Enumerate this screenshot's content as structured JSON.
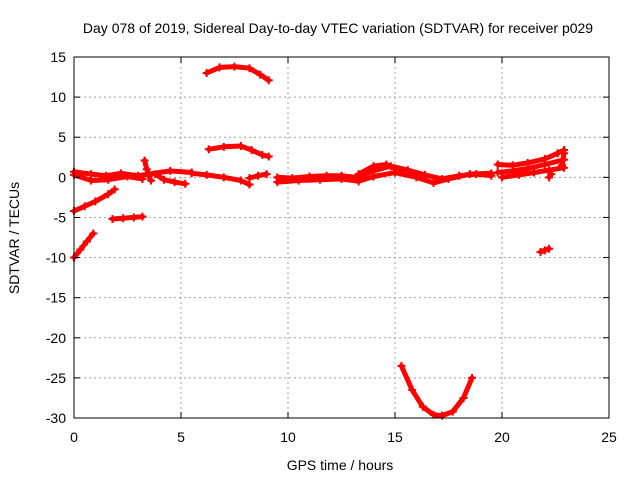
{
  "chart_data": {
    "type": "scatter",
    "title": "Day 078 of 2019, Sidereal Day-to-day VTEC variation (SDTVAR) for receiver p029",
    "xlabel": "GPS time / hours",
    "ylabel": "SDTVAR / TECUs",
    "xlim": [
      0,
      25
    ],
    "ylim": [
      -30,
      15
    ],
    "xticks": [
      0,
      5,
      10,
      15,
      20,
      25
    ],
    "yticks": [
      -30,
      -25,
      -20,
      -15,
      -10,
      -5,
      0,
      5,
      10,
      15
    ],
    "grid": true,
    "marker": "plus",
    "color": "#ff0000",
    "series": [
      {
        "values": [
          [
            0.0,
            0.7
          ],
          [
            0.8,
            0.4
          ],
          [
            1.5,
            0.2
          ],
          [
            2.2,
            0.5
          ],
          [
            3.0,
            0.2
          ],
          [
            3.5,
            0.4
          ],
          [
            4.5,
            0.8
          ],
          [
            5.5,
            0.6
          ]
        ]
      },
      {
        "values": [
          [
            0.0,
            0.3
          ],
          [
            0.8,
            -0.4
          ],
          [
            1.6,
            -0.3
          ],
          [
            2.5,
            0.1
          ],
          [
            3.2,
            -0.2
          ]
        ]
      },
      {
        "values": [
          [
            3.3,
            2.1
          ],
          [
            3.4,
            1.0
          ],
          [
            3.5,
            0.2
          ],
          [
            3.6,
            -0.4
          ]
        ]
      },
      {
        "values": [
          [
            3.8,
            0.4
          ],
          [
            4.2,
            -0.3
          ],
          [
            4.7,
            -0.6
          ],
          [
            5.2,
            -0.8
          ]
        ]
      },
      {
        "values": [
          [
            5.5,
            0.5
          ],
          [
            6.2,
            0.3
          ],
          [
            7.0,
            0.0
          ],
          [
            7.8,
            -0.4
          ],
          [
            8.2,
            -0.9
          ]
        ]
      },
      {
        "values": [
          [
            8.2,
            -0.1
          ],
          [
            8.6,
            0.2
          ],
          [
            9.0,
            0.4
          ]
        ]
      },
      {
        "values": [
          [
            0.0,
            -4.2
          ],
          [
            0.5,
            -3.6
          ],
          [
            1.0,
            -3.0
          ],
          [
            1.6,
            -2.1
          ],
          [
            1.9,
            -1.5
          ]
        ]
      },
      {
        "values": [
          [
            1.8,
            -5.2
          ],
          [
            2.3,
            -5.1
          ],
          [
            2.8,
            -5.0
          ],
          [
            3.2,
            -4.9
          ]
        ]
      },
      {
        "values": [
          [
            0.0,
            -10.0
          ],
          [
            0.3,
            -9.0
          ],
          [
            0.6,
            -8.0
          ],
          [
            0.9,
            -7.0
          ]
        ]
      },
      {
        "values": [
          [
            6.2,
            13.0
          ],
          [
            6.8,
            13.7
          ],
          [
            7.5,
            13.8
          ],
          [
            8.2,
            13.6
          ],
          [
            8.7,
            12.8
          ],
          [
            9.1,
            12.1
          ]
        ]
      },
      {
        "values": [
          [
            6.3,
            3.5
          ],
          [
            7.0,
            3.8
          ],
          [
            7.8,
            3.9
          ],
          [
            8.3,
            3.4
          ],
          [
            8.8,
            2.8
          ],
          [
            9.1,
            2.6
          ]
        ]
      },
      {
        "values": [
          [
            9.5,
            0.0
          ],
          [
            10.2,
            -0.1
          ],
          [
            11.0,
            0.1
          ],
          [
            11.8,
            0.2
          ],
          [
            12.5,
            0.2
          ],
          [
            13.2,
            0.0
          ],
          [
            14.0,
            0.8
          ],
          [
            14.8,
            1.4
          ],
          [
            15.6,
            0.9
          ],
          [
            16.4,
            0.3
          ],
          [
            17.2,
            -0.2
          ],
          [
            18.0,
            0.2
          ],
          [
            18.8,
            0.4
          ],
          [
            19.5,
            0.2
          ]
        ]
      },
      {
        "values": [
          [
            9.5,
            -0.6
          ],
          [
            10.5,
            -0.4
          ],
          [
            11.5,
            -0.3
          ],
          [
            12.5,
            -0.2
          ],
          [
            13.3,
            -0.5
          ],
          [
            14.0,
            0.1
          ],
          [
            15.0,
            0.6
          ],
          [
            16.0,
            0.0
          ],
          [
            16.8,
            -0.7
          ],
          [
            17.5,
            -0.2
          ],
          [
            18.5,
            0.4
          ],
          [
            19.5,
            0.5
          ]
        ]
      },
      {
        "values": [
          [
            13.3,
            0.4
          ],
          [
            14.0,
            1.4
          ],
          [
            14.6,
            1.6
          ],
          [
            15.3,
            0.8
          ]
        ]
      },
      {
        "values": [
          [
            15.3,
            -23.5
          ],
          [
            15.8,
            -26.5
          ],
          [
            16.3,
            -28.6
          ],
          [
            16.8,
            -29.6
          ],
          [
            17.2,
            -29.7
          ],
          [
            17.7,
            -29.2
          ],
          [
            18.2,
            -27.5
          ],
          [
            18.6,
            -25.0
          ]
        ]
      },
      {
        "values": [
          [
            19.8,
            1.6
          ],
          [
            20.5,
            1.5
          ],
          [
            21.2,
            1.8
          ],
          [
            22.0,
            2.3
          ],
          [
            22.6,
            3.0
          ],
          [
            22.9,
            3.4
          ]
        ]
      },
      {
        "values": [
          [
            19.8,
            0.6
          ],
          [
            20.5,
            0.8
          ],
          [
            21.2,
            1.1
          ],
          [
            22.0,
            1.6
          ],
          [
            22.9,
            2.2
          ]
        ]
      },
      {
        "values": [
          [
            20.0,
            0.0
          ],
          [
            20.8,
            0.3
          ],
          [
            21.5,
            0.6
          ],
          [
            22.2,
            0.9
          ],
          [
            22.9,
            1.2
          ]
        ]
      },
      {
        "values": [
          [
            21.8,
            -9.3
          ],
          [
            22.0,
            -9.1
          ],
          [
            22.2,
            -8.9
          ]
        ]
      },
      {
        "values": [
          [
            22.2,
            0.0
          ],
          [
            22.3,
            0.4
          ]
        ]
      },
      {
        "values": [
          [
            22.8,
            1.5
          ],
          [
            22.9,
            3.0
          ]
        ]
      }
    ]
  }
}
